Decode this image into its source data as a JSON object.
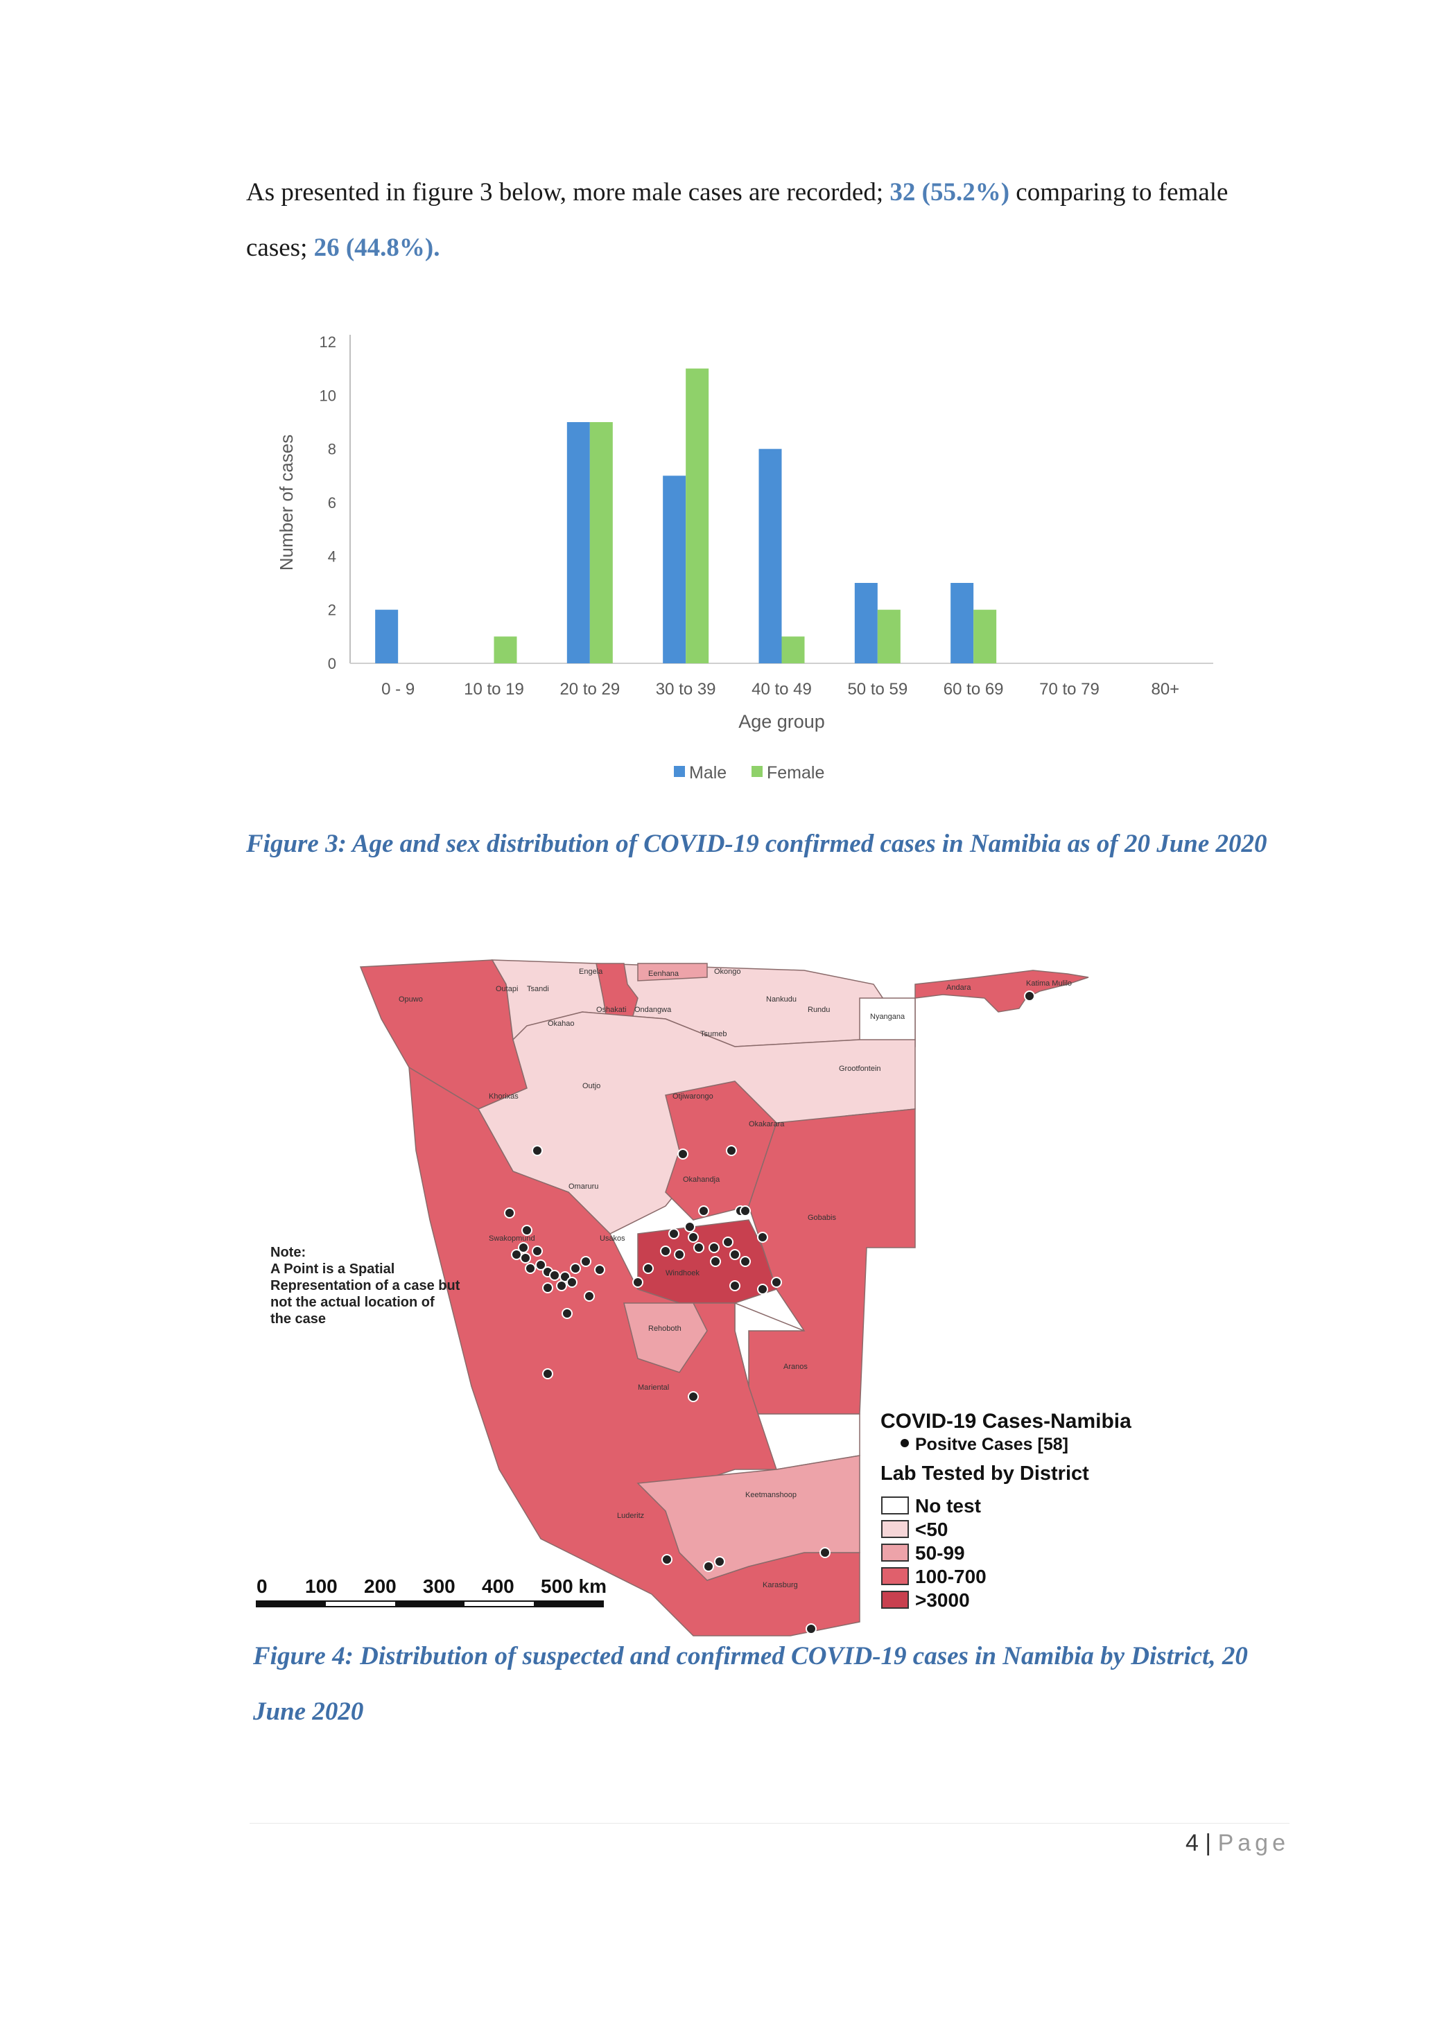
{
  "intro": {
    "part1": "As presented in figure 3 below, more male cases are recorded; ",
    "male_stat": "32 (55.2%)",
    "part2": " comparing to female cases; ",
    "female_stat": "26 (44.8%).",
    "part3": ""
  },
  "chart_data": {
    "type": "bar",
    "categories": [
      "0 - 9",
      "10 to 19",
      "20 to 29",
      "30 to 39",
      "40 to 49",
      "50 to 59",
      "60 to 69",
      "70 to 79",
      "80+"
    ],
    "series": [
      {
        "name": "Male",
        "values": [
          2,
          0,
          9,
          7,
          8,
          3,
          3,
          0,
          0
        ],
        "color": "#4a8fd6"
      },
      {
        "name": "Female",
        "values": [
          0,
          1,
          9,
          11,
          1,
          2,
          2,
          0,
          0
        ],
        "color": "#8fd16a"
      }
    ],
    "xlabel": "Age group",
    "ylabel": "Number of cases",
    "ylim": [
      0,
      12
    ],
    "yticks": [
      "0",
      "2",
      "4",
      "6",
      "8",
      "10",
      "12"
    ],
    "legend": "bottom-center",
    "grid": false
  },
  "figure3_caption": "Figure 3: Age and sex distribution of COVID-19 confirmed cases in Namibia as of 20 June 2020",
  "map": {
    "title": "COVID-19 Cases-Namibia",
    "positive_cases": "Positve Cases [58]",
    "legend_title": "Lab Tested by District",
    "legend": [
      {
        "label": "No test",
        "color": "#ffffff"
      },
      {
        "label": "<50",
        "color": "#f6d6d8"
      },
      {
        "label": "50-99",
        "color": "#eda3a9"
      },
      {
        "label": "100-700",
        "color": "#e0606c"
      },
      {
        "label": ">3000",
        "color": "#c8404f"
      }
    ],
    "note_title": "Note:",
    "note_text": [
      "A Point is a Spatial",
      "Representation of a case but",
      "not the actual location of",
      "the case"
    ],
    "scale_labels": [
      "0",
      "100",
      "200",
      "300",
      "400",
      "500 km"
    ],
    "districts": [
      "Opuwo",
      "Outapi",
      "Tsandi",
      "Okahao",
      "Oshakati",
      "Ondangwa",
      "Engela",
      "Eenhana",
      "Okongo",
      "Nankudu",
      "Rundu",
      "Andara",
      "Katima Mulilo",
      "Nyangana",
      "Tsumeb",
      "Grootfontein",
      "Outjo",
      "Khorixas",
      "Otjiwarongo",
      "Okakarara",
      "Omaruru",
      "Okahandja",
      "Gobabis",
      "Swakopmund",
      "Usakos",
      "Windhoek",
      "Rehoboth",
      "Aranos",
      "Mariental",
      "Keetmanshoop",
      "Luderitz",
      "Karasburg"
    ]
  },
  "figure4_caption": "Figure 4: Distribution of suspected and confirmed COVID-19 cases in Namibia by District, 20 June 2020",
  "footer": {
    "page_num": "4",
    "sep": " | ",
    "page_word": "Page"
  }
}
